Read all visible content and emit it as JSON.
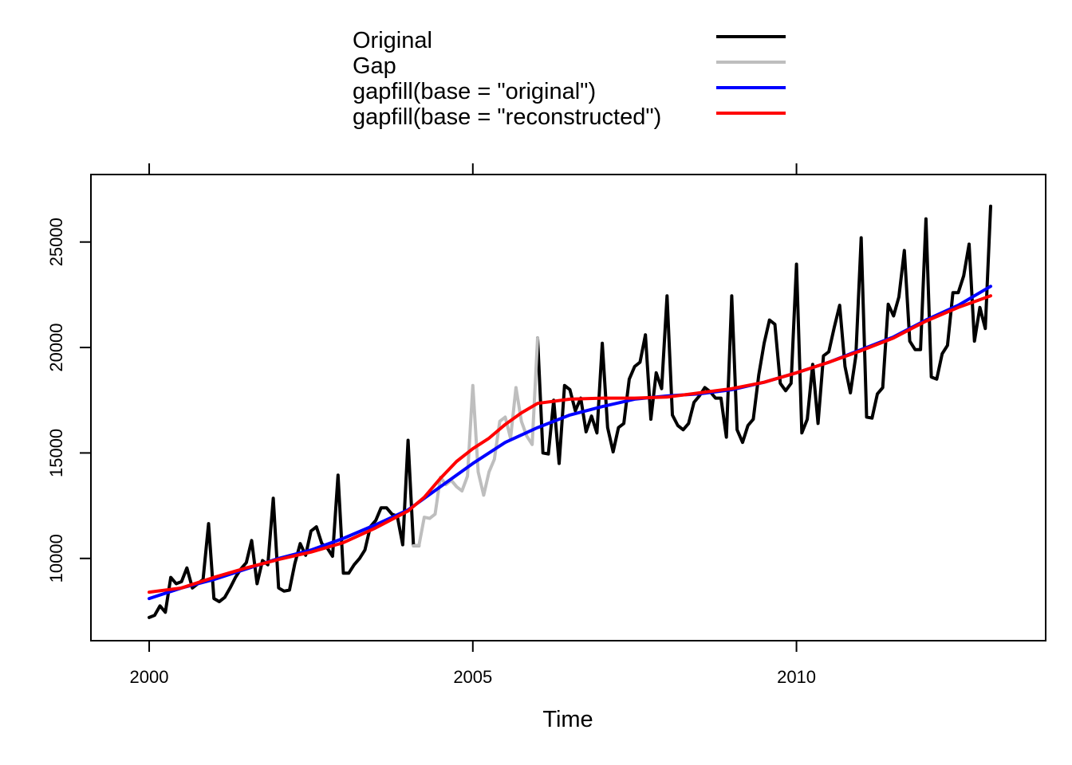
{
  "chart_data": {
    "type": "line",
    "xlabel": "Time",
    "ylabel": "",
    "xlim": [
      1999.1,
      2013.85
    ],
    "ylim": [
      6100,
      28200
    ],
    "x_ticks": [
      2000,
      2005,
      2010
    ],
    "y_ticks": [
      10000,
      15000,
      20000,
      25000
    ],
    "x_tick_labels": [
      "2000",
      "2005",
      "2010"
    ],
    "y_tick_labels": [
      "10000",
      "15000",
      "20000",
      "25000"
    ],
    "grid": false,
    "legend_position": "top-center",
    "series": [
      {
        "name": "Original",
        "color": "#000000",
        "x": [
          2000.0,
          2000.083,
          2000.167,
          2000.25,
          2000.333,
          2000.417,
          2000.5,
          2000.583,
          2000.667,
          2000.75,
          2000.833,
          2000.917,
          2001.0,
          2001.083,
          2001.167,
          2001.25,
          2001.333,
          2001.417,
          2001.5,
          2001.583,
          2001.667,
          2001.75,
          2001.833,
          2001.917,
          2002.0,
          2002.083,
          2002.167,
          2002.25,
          2002.333,
          2002.417,
          2002.5,
          2002.583,
          2002.667,
          2002.75,
          2002.833,
          2002.917,
          2003.0,
          2003.083,
          2003.167,
          2003.25,
          2003.333,
          2003.417,
          2003.5,
          2003.583,
          2003.667,
          2003.75,
          2003.833,
          2003.917,
          2004.0,
          2004.083,
          2004.167,
          null,
          2006.0,
          2006.083,
          2006.167,
          2006.25,
          2006.333,
          2006.417,
          2006.5,
          2006.583,
          2006.667,
          2006.75,
          2006.833,
          2006.917,
          2007.0,
          2007.083,
          2007.167,
          2007.25,
          2007.333,
          2007.417,
          2007.5,
          2007.583,
          2007.667,
          2007.75,
          2007.833,
          2007.917,
          2008.0,
          2008.083,
          2008.167,
          2008.25,
          2008.333,
          2008.417,
          2008.5,
          2008.583,
          2008.667,
          2008.75,
          2008.833,
          2008.917,
          2009.0,
          2009.083,
          2009.167,
          2009.25,
          2009.333,
          2009.417,
          2009.5,
          2009.583,
          2009.667,
          2009.75,
          2009.833,
          2009.917,
          2010.0,
          2010.083,
          2010.167,
          2010.25,
          2010.333,
          2010.417,
          2010.5,
          2010.583,
          2010.667,
          2010.75,
          2010.833,
          2010.917,
          2011.0,
          2011.083,
          2011.167,
          2011.25,
          2011.333,
          2011.417,
          2011.5,
          2011.583,
          2011.667,
          2011.75,
          2011.833,
          2011.917,
          2012.0,
          2012.083,
          2012.167,
          2012.25,
          2012.333,
          2012.417,
          2012.5,
          2012.583,
          2012.667,
          2012.75,
          2012.833,
          2012.917,
          2013.0
        ],
        "y": [
          7200,
          7300,
          7750,
          7450,
          9100,
          8800,
          8900,
          9550,
          8600,
          8800,
          9000,
          11650,
          8100,
          7950,
          8150,
          8600,
          9100,
          9500,
          9800,
          10850,
          8800,
          9900,
          9700,
          12850,
          8600,
          8450,
          8500,
          9750,
          10700,
          10150,
          11300,
          11500,
          10700,
          10500,
          10100,
          13950,
          9300,
          9300,
          9700,
          10000,
          10400,
          11500,
          11800,
          12400,
          12400,
          12100,
          12000,
          10650,
          15600,
          10600,
          10600,
          null,
          20450,
          15000,
          14950,
          17500,
          14500,
          18200,
          18000,
          17000,
          17600,
          16000,
          16750,
          15950,
          20200,
          16200,
          15050,
          16200,
          16400,
          18500,
          19100,
          19300,
          20600,
          16600,
          18800,
          18050,
          22450,
          16800,
          16300,
          16100,
          16400,
          17400,
          17700,
          18100,
          17900,
          17600,
          17600,
          15750,
          22450,
          16100,
          15500,
          16300,
          16600,
          18700,
          20200,
          21300,
          21100,
          18300,
          17950,
          18300,
          23950,
          15950,
          16600,
          19200,
          16400,
          19600,
          19800,
          20950,
          22000,
          19100,
          17850,
          19600,
          25200,
          16700,
          16650,
          17800,
          18100,
          22050,
          21500,
          22400,
          24600,
          20300,
          19900,
          19900,
          26100,
          18600,
          18500,
          19700,
          20100,
          22600,
          22600,
          23400,
          24900,
          20300,
          21900,
          20900,
          26700
        ]
      },
      {
        "name": "Gap",
        "color": "#bebebe",
        "x": [
          2004.083,
          2004.167,
          2004.25,
          2004.333,
          2004.417,
          2004.5,
          2004.583,
          2004.667,
          2004.75,
          2004.833,
          2004.917,
          2005.0,
          2005.083,
          2005.167,
          2005.25,
          2005.333,
          2005.417,
          2005.5,
          2005.583,
          2005.667,
          2005.75,
          2005.833,
          2005.917,
          2006.0
        ],
        "y": [
          10600,
          10600,
          11950,
          11900,
          12100,
          13850,
          13500,
          13700,
          13400,
          13200,
          13900,
          18200,
          14100,
          13000,
          14100,
          14700,
          16500,
          16700,
          15700,
          18100,
          16500,
          15800,
          15400,
          20450
        ]
      },
      {
        "name": "gapfill(base = \"original\")",
        "color": "#0000ff",
        "x": [
          2000.0,
          2000.5,
          2001.0,
          2001.5,
          2002.0,
          2002.5,
          2003.0,
          2003.5,
          2004.0,
          2004.5,
          2005.0,
          2005.5,
          2006.0,
          2006.5,
          2007.0,
          2007.5,
          2008.0,
          2008.5,
          2009.0,
          2009.5,
          2010.0,
          2010.5,
          2011.0,
          2011.5,
          2012.0,
          2012.5,
          2013.0
        ],
        "y": [
          8100,
          8600,
          9000,
          9500,
          10000,
          10400,
          10950,
          11600,
          12300,
          13400,
          14500,
          15500,
          16200,
          16800,
          17200,
          17550,
          17700,
          17800,
          18000,
          18350,
          18800,
          19300,
          19900,
          20500,
          21300,
          22000,
          22900
        ]
      },
      {
        "name": "gapfill(base = \"reconstructed\")",
        "color": "#ff0000",
        "x": [
          2000.0,
          2000.5,
          2001.0,
          2001.5,
          2002.0,
          2002.5,
          2003.0,
          2003.5,
          2004.0,
          2004.25,
          2004.5,
          2004.75,
          2005.0,
          2005.25,
          2005.5,
          2005.75,
          2006.0,
          2006.5,
          2007.0,
          2007.5,
          2008.0,
          2008.5,
          2009.0,
          2009.5,
          2010.0,
          2010.5,
          2011.0,
          2011.5,
          2012.0,
          2012.5,
          2013.0
        ],
        "y": [
          8400,
          8600,
          9100,
          9550,
          9950,
          10300,
          10750,
          11450,
          12250,
          12900,
          13800,
          14600,
          15200,
          15700,
          16350,
          16900,
          17350,
          17550,
          17600,
          17600,
          17650,
          17850,
          18050,
          18350,
          18800,
          19300,
          19850,
          20450,
          21250,
          21900,
          22450
        ]
      }
    ]
  }
}
